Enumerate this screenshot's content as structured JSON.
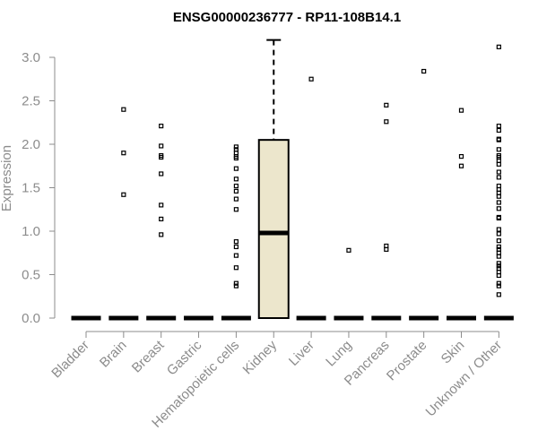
{
  "chart_data": {
    "type": "box",
    "title": "ENSG00000236777 - RP11-108B14.1",
    "xlabel": "",
    "ylabel": "Expression",
    "ylim": [
      0,
      3.2
    ],
    "yticks": [
      "0.0",
      "0.5",
      "1.0",
      "1.5",
      "2.0",
      "2.5",
      "3.0"
    ],
    "categories": [
      "Bladder",
      "Brain",
      "Breast",
      "Gastric",
      "Hematopoietic cells",
      "Kidney",
      "Liver",
      "Lung",
      "Pancreas",
      "Prostate",
      "Skin",
      "Unknown / Other"
    ],
    "box_fill": "#ece6cc",
    "series": [
      {
        "category": "Bladder",
        "q1": 0,
        "median": 0,
        "q3": 0,
        "whisker_low": 0,
        "whisker_high": 0,
        "outliers": []
      },
      {
        "category": "Brain",
        "q1": 0,
        "median": 0,
        "q3": 0,
        "whisker_low": 0,
        "whisker_high": 0,
        "outliers": [
          2.4,
          1.9,
          1.42
        ]
      },
      {
        "category": "Breast",
        "q1": 0,
        "median": 0,
        "q3": 0,
        "whisker_low": 0,
        "whisker_high": 0,
        "outliers": [
          2.21,
          1.98,
          1.87,
          1.85,
          1.66,
          1.3,
          1.14,
          0.96
        ]
      },
      {
        "category": "Gastric",
        "q1": 0,
        "median": 0,
        "q3": 0,
        "whisker_low": 0,
        "whisker_high": 0,
        "outliers": []
      },
      {
        "category": "Hematopoietic cells",
        "q1": 0,
        "median": 0,
        "q3": 0,
        "whisker_low": 0,
        "whisker_high": 0,
        "outliers": [
          1.97,
          1.94,
          1.9,
          1.86,
          1.84,
          1.72,
          1.6,
          1.52,
          1.46,
          1.37,
          1.25,
          0.88,
          0.82,
          0.72,
          0.58,
          0.4,
          0.37
        ]
      },
      {
        "category": "Kidney",
        "q1": 0,
        "median": 0.98,
        "q3": 2.05,
        "whisker_low": 0,
        "whisker_high": 3.2,
        "outliers": []
      },
      {
        "category": "Liver",
        "q1": 0,
        "median": 0,
        "q3": 0,
        "whisker_low": 0,
        "whisker_high": 0,
        "outliers": [
          2.75
        ]
      },
      {
        "category": "Lung",
        "q1": 0,
        "median": 0,
        "q3": 0,
        "whisker_low": 0,
        "whisker_high": 0,
        "outliers": [
          0.78
        ]
      },
      {
        "category": "Pancreas",
        "q1": 0,
        "median": 0,
        "q3": 0,
        "whisker_low": 0,
        "whisker_high": 0,
        "outliers": [
          2.45,
          2.26,
          0.83,
          0.79
        ]
      },
      {
        "category": "Prostate",
        "q1": 0,
        "median": 0,
        "q3": 0,
        "whisker_low": 0,
        "whisker_high": 0,
        "outliers": [
          2.84
        ]
      },
      {
        "category": "Skin",
        "q1": 0,
        "median": 0,
        "q3": 0,
        "whisker_low": 0,
        "whisker_high": 0,
        "outliers": [
          2.39,
          1.86,
          1.75
        ]
      },
      {
        "category": "Unknown / Other",
        "q1": 0,
        "median": 0,
        "q3": 0,
        "whisker_low": 0,
        "whisker_high": 0,
        "outliers": [
          3.12,
          2.21,
          2.16,
          2.06,
          2.05,
          1.94,
          1.87,
          1.85,
          1.81,
          1.77,
          1.68,
          1.62,
          1.52,
          1.48,
          1.44,
          1.4,
          1.33,
          1.26,
          1.16,
          1.15,
          1.02,
          0.97,
          0.89,
          0.82,
          0.79,
          0.75,
          0.71,
          0.63,
          0.6,
          0.57,
          0.53,
          0.49,
          0.4,
          0.37,
          0.27
        ]
      }
    ]
  }
}
